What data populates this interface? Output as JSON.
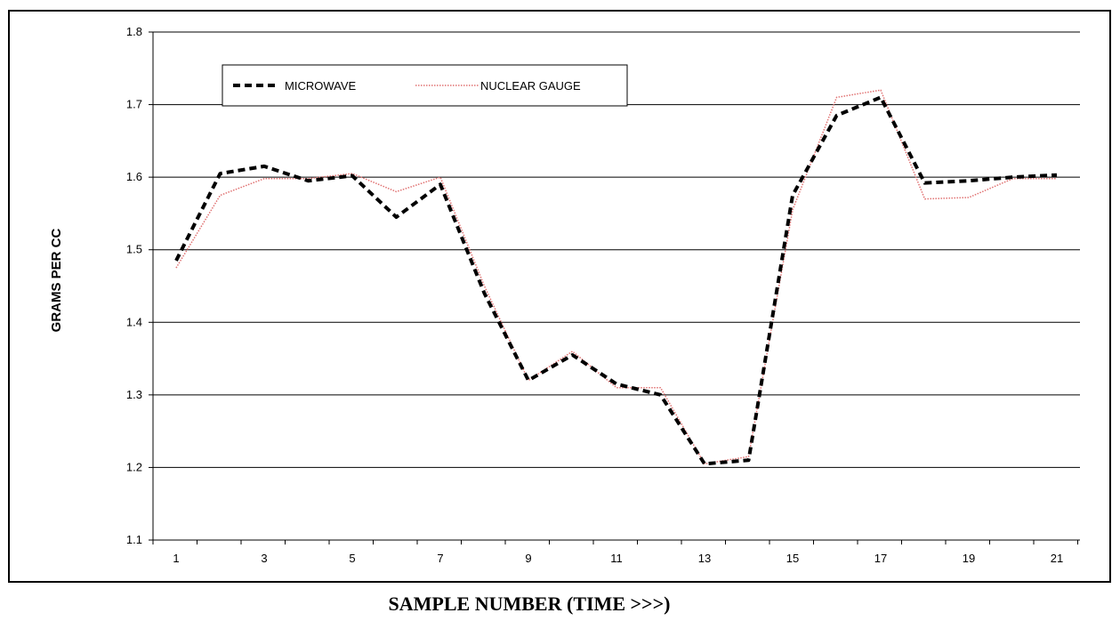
{
  "chart_data": {
    "type": "line",
    "title": "",
    "xlabel": "SAMPLE NUMBER (TIME >>>)",
    "ylabel": "GRAMS PER CC",
    "x": [
      1,
      2,
      3,
      4,
      5,
      6,
      7,
      8,
      9,
      10,
      11,
      12,
      13,
      14,
      15,
      16,
      17,
      18,
      19,
      20,
      21
    ],
    "x_tick_labels": [
      "1",
      "3",
      "5",
      "7",
      "9",
      "11",
      "13",
      "15",
      "17",
      "19",
      "21"
    ],
    "y_tick_labels": [
      "1.1",
      "1.2",
      "1.3",
      "1.4",
      "1.5",
      "1.6",
      "1.7",
      "1.8"
    ],
    "xlim": [
      1,
      21
    ],
    "ylim": [
      1.1,
      1.8
    ],
    "grid": "horizontal",
    "legend_position": "top-left",
    "series": [
      {
        "name": "MICROWAVE",
        "style": "dashed",
        "color": "#000000",
        "values": [
          1.485,
          1.605,
          1.615,
          1.595,
          1.602,
          1.545,
          1.59,
          1.44,
          1.32,
          1.355,
          1.315,
          1.3,
          1.205,
          1.21,
          1.575,
          1.685,
          1.71,
          1.592,
          1.595,
          1.6,
          1.603
        ]
      },
      {
        "name": "NUCLEAR GAUGE",
        "style": "dotted",
        "color": "#e07070",
        "values": [
          1.475,
          1.575,
          1.598,
          1.598,
          1.605,
          1.58,
          1.6,
          1.45,
          1.32,
          1.36,
          1.31,
          1.31,
          1.205,
          1.215,
          1.555,
          1.71,
          1.72,
          1.57,
          1.572,
          1.598,
          1.598
        ]
      }
    ]
  }
}
